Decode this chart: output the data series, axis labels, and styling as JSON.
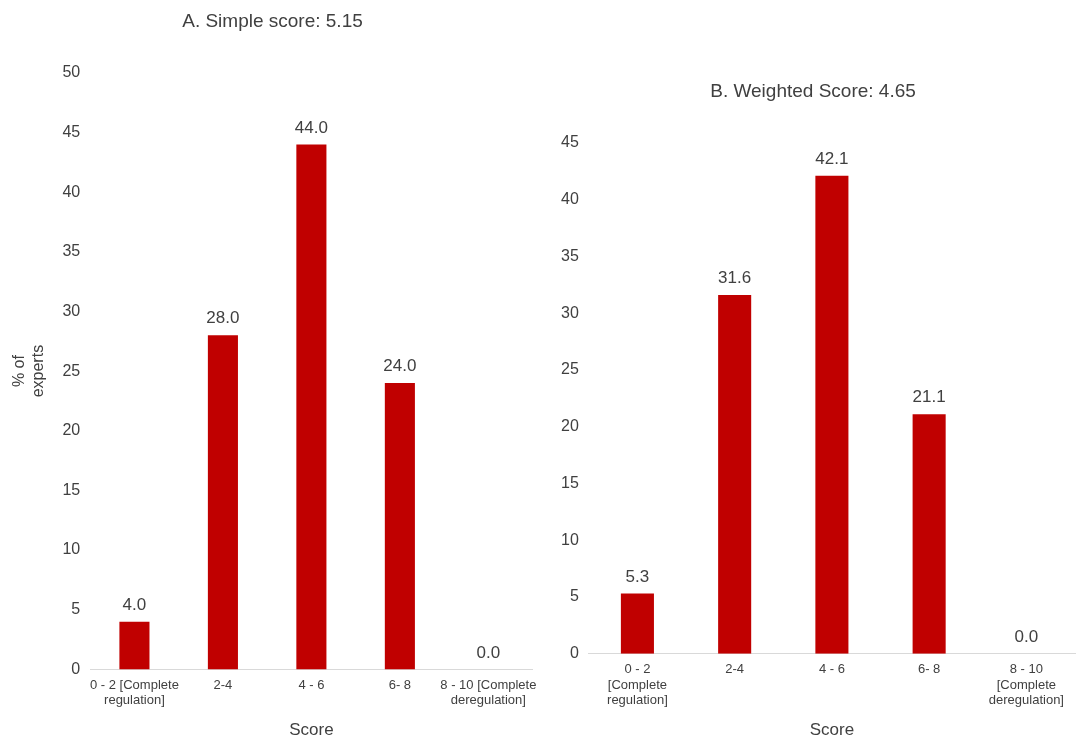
{
  "chart_data": [
    {
      "type": "bar",
      "title": "A. Simple score: 5.15",
      "xlabel": "Score",
      "ylabel": "% of experts",
      "categories": [
        "0 - 2 [Complete regulation]",
        "2-4",
        "4 - 6",
        "6- 8",
        "8 - 10 [Complete deregulation]"
      ],
      "values": [
        4,
        28,
        44,
        24,
        0
      ],
      "value_labels": [
        "4.0",
        "28.0",
        "44.0",
        "24.0",
        "0.0"
      ],
      "color": "#c00000",
      "ylim": [
        0,
        50
      ],
      "yticks": [
        0,
        5,
        10,
        15,
        20,
        25,
        30,
        35,
        40,
        45,
        50
      ],
      "grid": false,
      "legend": false
    },
    {
      "type": "bar",
      "title": "B. Weighted Score: 4.65",
      "xlabel": "Score",
      "categories": [
        "0 - 2 [Complete regulation]",
        "2-4",
        "4 - 6",
        "6- 8",
        "8 - 10 [Complete deregulation]"
      ],
      "values": [
        5.3,
        31.6,
        42.1,
        21.1,
        0
      ],
      "value_labels": [
        "5.3",
        "31.6",
        "42.1",
        "21.1",
        "0.0"
      ],
      "color": "#c00000",
      "ylim": [
        0,
        45
      ],
      "yticks": [
        0,
        5,
        10,
        15,
        20,
        25,
        30,
        35,
        40,
        45
      ],
      "grid": false,
      "legend": false
    }
  ]
}
